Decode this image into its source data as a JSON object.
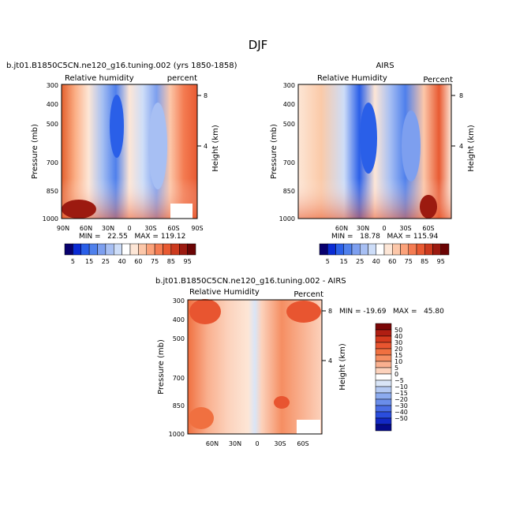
{
  "figure": {
    "title": "DJF"
  },
  "chart_data": [
    {
      "type": "heatmap",
      "title": "b.jt01.B1850C5CN.ne120_g16.tuning.002 (yrs 1850-1858)",
      "subtitle_left": "Relative humidity",
      "subtitle_right": "percent",
      "ylabel": "Pressure (mb)",
      "ylabel_right": "Height (km)",
      "x_ticks": [
        "90N",
        "60N",
        "30N",
        "0",
        "30S",
        "60S",
        "90S"
      ],
      "y_ticks": [
        "300",
        "400",
        "500",
        "700",
        "850",
        "1000"
      ],
      "y_right_ticks": [
        "8",
        "4"
      ],
      "ylim": [
        1000,
        300
      ],
      "stats": "MIN =   22.55   MAX = 119.12",
      "colorscale": "fields"
    },
    {
      "type": "heatmap",
      "title": "AIRS",
      "subtitle_left": "Relative Humidity",
      "subtitle_right": "Percent",
      "ylabel": "Pressure (mb)",
      "ylabel_right": "Height (km)",
      "x_ticks": [
        "60N",
        "30N",
        "0",
        "30S",
        "60S"
      ],
      "y_ticks": [
        "300",
        "400",
        "500",
        "700",
        "850",
        "1000"
      ],
      "y_right_ticks": [
        "8",
        "4"
      ],
      "ylim": [
        1000,
        300
      ],
      "stats": "MIN =   18.78   MAX = 115.94",
      "colorscale": "fields"
    },
    {
      "type": "heatmap",
      "title": "b.jt01.B1850C5CN.ne120_g16.tuning.002 - AIRS",
      "subtitle_left": "Relative Humidity",
      "subtitle_right": "Percent",
      "ylabel": "Pressure (mb)",
      "ylabel_right": "Height (km)",
      "x_ticks": [
        "60N",
        "30N",
        "0",
        "30S",
        "60S"
      ],
      "y_ticks": [
        "300",
        "400",
        "500",
        "700",
        "850",
        "1000"
      ],
      "y_right_ticks": [
        "8",
        "4"
      ],
      "ylim": [
        1000,
        300
      ],
      "stats": "MIN = -19.69   MAX =   45.80",
      "colorscale": "difference"
    }
  ],
  "colorbars": {
    "fields": {
      "labels": [
        "5",
        "15",
        "25",
        "40",
        "60",
        "75",
        "85",
        "95"
      ],
      "colors": [
        "#08006e",
        "#0a2bd4",
        "#2a5fe8",
        "#4f80ec",
        "#7d9fef",
        "#a7bff3",
        "#cdddf8",
        "#ffffff",
        "#fde6d6",
        "#fcc7a9",
        "#fba27a",
        "#f47c52",
        "#e85a32",
        "#cc3a1e",
        "#9c1a10",
        "#6b0404"
      ]
    },
    "difference": {
      "labels": [
        "50",
        "40",
        "30",
        "20",
        "15",
        "10",
        "5",
        "0",
        "−5",
        "−10",
        "−15",
        "−20",
        "−30",
        "−40",
        "−50"
      ],
      "colors": [
        "#7a0606",
        "#b01e12",
        "#d43a1e",
        "#e85530",
        "#f07040",
        "#f58e62",
        "#f9b08f",
        "#fcd2bc",
        "#ffffff",
        "#d9e5f7",
        "#b4c9f2",
        "#8cabef",
        "#6a8dea",
        "#4a6de4",
        "#2a4ddd",
        "#1228c4",
        "#050a8a"
      ]
    }
  }
}
